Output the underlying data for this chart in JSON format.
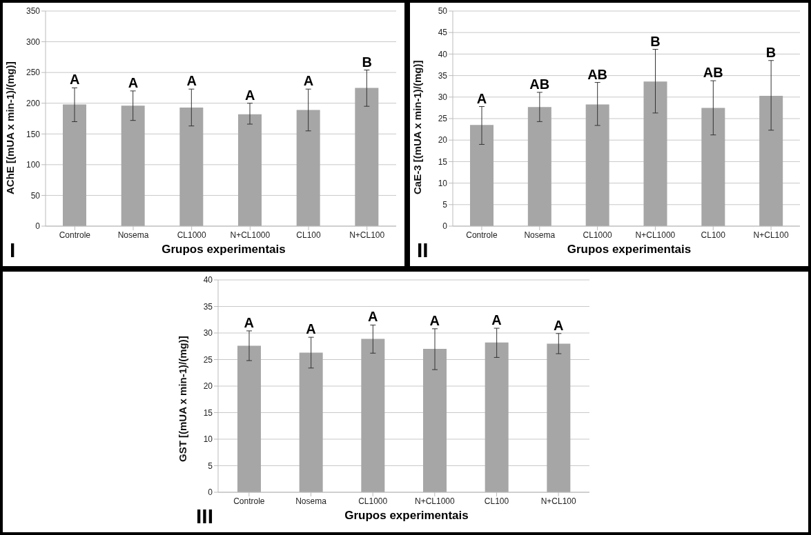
{
  "chart_data": [
    {
      "type": "bar",
      "ylabel": "AChE [(mUA x min-1)/(mg)]",
      "xlabel": "Grupos experimentais",
      "categories": [
        "Controle",
        "Nosema",
        "CL1000",
        "N+CL1000",
        "CL100",
        "N+CL100"
      ],
      "values": [
        198,
        196,
        193,
        182,
        189,
        225
      ],
      "errors": [
        [
          170,
          225
        ],
        [
          172,
          220
        ],
        [
          163,
          223
        ],
        [
          166,
          200
        ],
        [
          155,
          223
        ],
        [
          195,
          254
        ]
      ],
      "color": "#a6a6a6",
      "ylim": [
        0,
        350
      ],
      "yticks": [
        0,
        50,
        100,
        150,
        200,
        250,
        300,
        350
      ],
      "grid": "y",
      "annotations": [
        {
          "text": "A",
          "x": "Controle",
          "y": 225
        },
        {
          "text": "A",
          "x": "Nosema",
          "y": 220
        },
        {
          "text": "A",
          "x": "CL1000",
          "y": 223
        },
        {
          "text": "A",
          "x": "N+CL1000",
          "y": 200
        },
        {
          "text": "A",
          "x": "CL100",
          "y": 223
        },
        {
          "text": "B",
          "x": "N+CL100",
          "y": 254
        },
        "I"
      ]
    },
    {
      "type": "bar",
      "ylabel": "CaE-3 [(mUA x min-1)/(mg)]",
      "xlabel": "Grupos experimentais",
      "categories": [
        "Controle",
        "Nosema",
        "CL1000",
        "N+CL1000",
        "CL100",
        "N+CL100"
      ],
      "values": [
        23.5,
        27.7,
        28.3,
        33.6,
        27.5,
        30.3
      ],
      "errors": [
        [
          19,
          27.8
        ],
        [
          24.3,
          31.1
        ],
        [
          23.4,
          33.4
        ],
        [
          26.3,
          41.1
        ],
        [
          21.2,
          33.8
        ],
        [
          22.3,
          38.5
        ]
      ],
      "color": "#a6a6a6",
      "ylim": [
        0,
        50
      ],
      "yticks": [
        0,
        5,
        10,
        15,
        20,
        25,
        30,
        35,
        40,
        45,
        50
      ],
      "grid": "y",
      "annotations": [
        {
          "text": "A",
          "x": "Controle",
          "y": 27.8
        },
        {
          "text": "AB",
          "x": "Nosema",
          "y": 31.1
        },
        {
          "text": "AB",
          "x": "CL1000",
          "y": 33.4
        },
        {
          "text": "B",
          "x": "N+CL1000",
          "y": 41.1
        },
        {
          "text": "AB",
          "x": "CL100",
          "y": 33.8
        },
        {
          "text": "B",
          "x": "N+CL100",
          "y": 38.5
        },
        "II"
      ]
    },
    {
      "type": "bar",
      "ylabel": "GST [(mUA x min-1)/(mg)]",
      "xlabel": "Grupos experimentais",
      "categories": [
        "Controle",
        "Nosema",
        "CL1000",
        "N+CL1000",
        "CL100",
        "N+CL100"
      ],
      "values": [
        27.6,
        26.3,
        28.9,
        27.0,
        28.2,
        28.0
      ],
      "errors": [
        [
          24.8,
          30.4
        ],
        [
          23.4,
          29.2
        ],
        [
          26.2,
          31.5
        ],
        [
          23.1,
          30.8
        ],
        [
          25.4,
          30.9
        ],
        [
          26.1,
          29.9
        ]
      ],
      "color": "#a6a6a6",
      "ylim": [
        0,
        40
      ],
      "yticks": [
        0,
        5,
        10,
        15,
        20,
        25,
        30,
        35,
        40
      ],
      "grid": "y",
      "annotations": [
        {
          "text": "A",
          "x": "Controle",
          "y": 30.4
        },
        {
          "text": "A",
          "x": "Nosema",
          "y": 29.2
        },
        {
          "text": "A",
          "x": "CL1000",
          "y": 31.5
        },
        {
          "text": "A",
          "x": "N+CL1000",
          "y": 30.8
        },
        {
          "text": "A",
          "x": "CL100",
          "y": 30.9
        },
        {
          "text": "A",
          "x": "N+CL100",
          "y": 29.9
        },
        "III"
      ]
    }
  ]
}
